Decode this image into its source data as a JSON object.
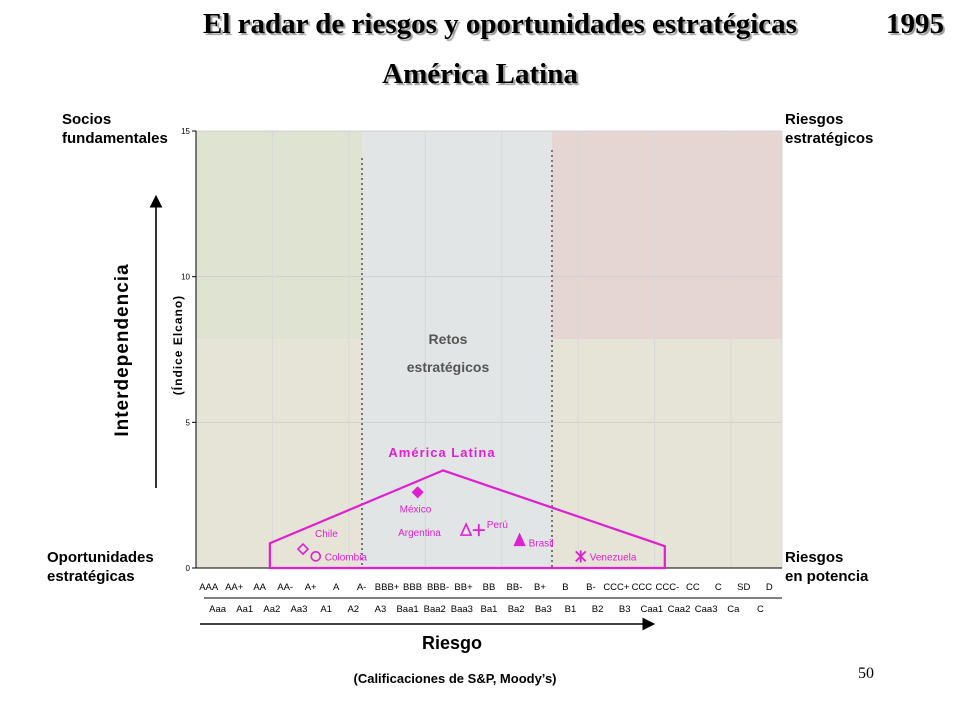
{
  "title": "El radar de riesgos y oportunidades estratégicas",
  "year": "1995",
  "subtitle": "América Latina",
  "corners": {
    "top_left": [
      "Socios",
      "fundamentales"
    ],
    "top_right": [
      "Riesgos",
      "estratégicos"
    ],
    "bottom_left": [
      "Oportunidades",
      "estratégicas"
    ],
    "bottom_right": [
      "Riesgos",
      "en potencia"
    ]
  },
  "page_number": "50",
  "chart_data": {
    "type": "scatter",
    "ylabel": "Interdependencia",
    "ylabel_sub": "(Índice Elcano)",
    "xlabel": "Riesgo",
    "xlabel_sub": "(Calificaciones de S&P, Moody’s)",
    "ylim": [
      0,
      15
    ],
    "yticks": [
      "0",
      "5",
      "10",
      "15"
    ],
    "x_ticks_sp": [
      "AAA",
      "AA+",
      "AA",
      "AA-",
      "A+",
      "A",
      "A-",
      "BBB+",
      "BBB",
      "BBB-",
      "BB+",
      "BB",
      "BB-",
      "B+",
      "B",
      "B-",
      "CCC+",
      "CCC",
      "CCC-",
      "CC",
      "C",
      "SD",
      "D"
    ],
    "x_ticks_moodys": [
      "Aaa",
      "Aa1",
      "Aa2",
      "Aa3",
      "A1",
      "A2",
      "A3",
      "Baa1",
      "Baa2",
      "Baa3",
      "Ba1",
      "Ba2",
      "Ba3",
      "B1",
      "B2",
      "B3",
      "Caa1",
      "Caa2",
      "Caa3",
      "Ca",
      "C"
    ],
    "zone_label": [
      "Retos",
      "estratégicos"
    ],
    "group_label": "América Latina",
    "marker_color": "#e020d0",
    "region_colors": {
      "top_left": "#dfe3d2",
      "middle": "#e1e5e5",
      "top_right": "#e6d6d3",
      "bottom_sides": "#e6e4d6"
    },
    "points": [
      {
        "name": "México",
        "rating_index": 8.2,
        "y": 2.6,
        "marker": "filled-diamond"
      },
      {
        "name": "Chile",
        "rating_index": 3.7,
        "y": 0.65,
        "marker": "open-diamond"
      },
      {
        "name": "Colombia",
        "rating_index": 4.2,
        "y": 0.4,
        "marker": "open-circle"
      },
      {
        "name": "Argentina",
        "rating_index": 10.1,
        "y": 1.3,
        "marker": "open-triangle"
      },
      {
        "name": "Perú",
        "rating_index": 10.6,
        "y": 1.3,
        "marker": "plus"
      },
      {
        "name": "Brasil",
        "rating_index": 12.2,
        "y": 0.95,
        "marker": "filled-triangle"
      },
      {
        "name": "Venezuela",
        "rating_index": 14.6,
        "y": 0.4,
        "marker": "star"
      }
    ],
    "group_outline": [
      [
        2.4,
        0.85
      ],
      [
        9.2,
        3.35
      ],
      [
        17.9,
        0.75
      ],
      [
        17.9,
        0.0
      ],
      [
        2.4,
        0.0
      ]
    ]
  }
}
